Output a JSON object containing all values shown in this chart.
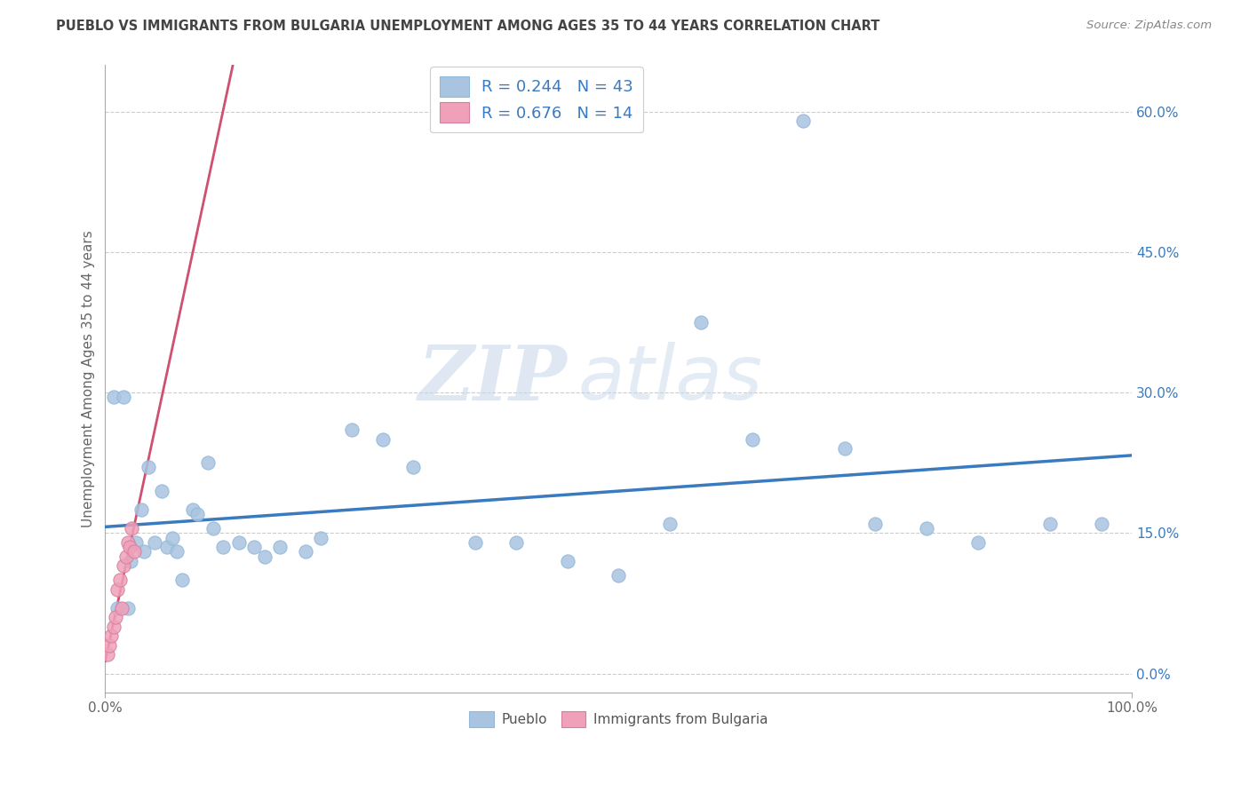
{
  "title": "PUEBLO VS IMMIGRANTS FROM BULGARIA UNEMPLOYMENT AMONG AGES 35 TO 44 YEARS CORRELATION CHART",
  "source_text": "Source: ZipAtlas.com",
  "ylabel": "Unemployment Among Ages 35 to 44 years",
  "legend_labels": [
    "Pueblo",
    "Immigrants from Bulgaria"
  ],
  "R_pueblo": 0.244,
  "N_pueblo": 43,
  "R_bulgaria": 0.676,
  "N_bulgaria": 14,
  "pueblo_color": "#a8c4e0",
  "bulgaria_color": "#f0a0b8",
  "trend_pueblo_color": "#3a7abf",
  "trend_bulgaria_color": "#d05070",
  "watermark_zip": "ZIP",
  "watermark_atlas": "atlas",
  "background_color": "#ffffff",
  "xmin": 0.0,
  "xmax": 1.0,
  "ymin": -0.02,
  "ymax": 0.65,
  "yticks": [
    0.0,
    0.15,
    0.3,
    0.45,
    0.6
  ],
  "ytick_labels": [
    "0.0%",
    "15.0%",
    "30.0%",
    "45.0%",
    "60.0%"
  ],
  "xticks": [
    0.0,
    1.0
  ],
  "xtick_labels": [
    "0.0%",
    "100.0%"
  ],
  "pueblo_x": [
    0.008,
    0.012,
    0.018,
    0.022,
    0.025,
    0.03,
    0.035,
    0.038,
    0.042,
    0.048,
    0.055,
    0.06,
    0.065,
    0.07,
    0.075,
    0.085,
    0.09,
    0.1,
    0.105,
    0.115,
    0.13,
    0.145,
    0.155,
    0.17,
    0.195,
    0.21,
    0.24,
    0.27,
    0.3,
    0.36,
    0.4,
    0.45,
    0.5,
    0.55,
    0.58,
    0.63,
    0.68,
    0.72,
    0.75,
    0.8,
    0.85,
    0.92,
    0.97
  ],
  "pueblo_y": [
    0.295,
    0.07,
    0.295,
    0.07,
    0.12,
    0.14,
    0.175,
    0.13,
    0.22,
    0.14,
    0.195,
    0.135,
    0.145,
    0.13,
    0.1,
    0.175,
    0.17,
    0.225,
    0.155,
    0.135,
    0.14,
    0.135,
    0.125,
    0.135,
    0.13,
    0.145,
    0.26,
    0.25,
    0.22,
    0.14,
    0.14,
    0.12,
    0.105,
    0.16,
    0.375,
    0.25,
    0.59,
    0.24,
    0.16,
    0.155,
    0.14,
    0.16,
    0.16
  ],
  "bulgaria_x": [
    0.002,
    0.004,
    0.006,
    0.008,
    0.01,
    0.012,
    0.014,
    0.016,
    0.018,
    0.02,
    0.022,
    0.024,
    0.026,
    0.028
  ],
  "bulgaria_y": [
    0.02,
    0.03,
    0.04,
    0.05,
    0.06,
    0.09,
    0.1,
    0.07,
    0.115,
    0.125,
    0.14,
    0.135,
    0.155,
    0.13
  ]
}
